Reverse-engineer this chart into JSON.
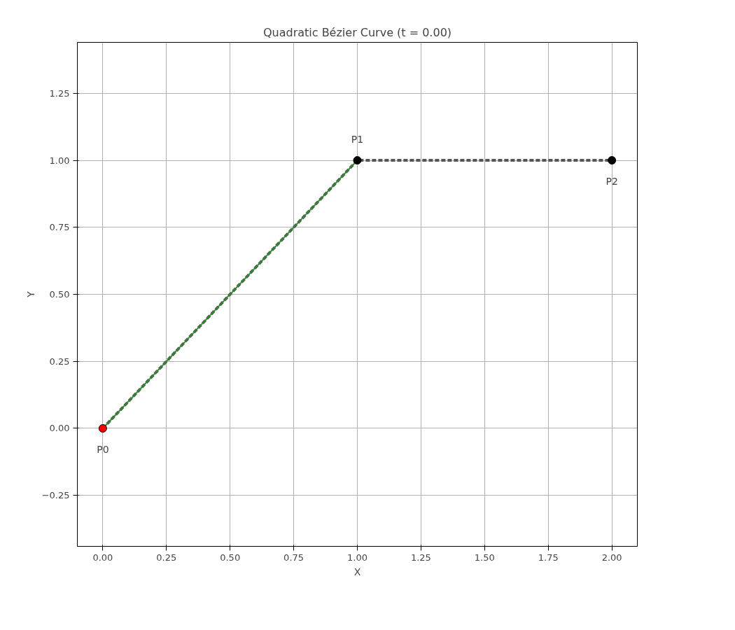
{
  "chart_data": {
    "type": "line",
    "title": "Quadratic Bézier Curve (t = 0.00)",
    "xlabel": "X",
    "ylabel": "Y",
    "xlim": [
      -0.1,
      2.1
    ],
    "ylim": [
      -0.44,
      1.44
    ],
    "xticks": [
      {
        "value": 0,
        "label": "0.00"
      },
      {
        "value": 0.25,
        "label": "0.25"
      },
      {
        "value": 0.5,
        "label": "0.50"
      },
      {
        "value": 0.75,
        "label": "0.75"
      },
      {
        "value": 1,
        "label": "1.00"
      },
      {
        "value": 1.25,
        "label": "1.25"
      },
      {
        "value": 1.5,
        "label": "1.50"
      },
      {
        "value": 1.75,
        "label": "1.75"
      },
      {
        "value": 2,
        "label": "2.00"
      }
    ],
    "yticks": [
      {
        "value": -0.25,
        "label": "−0.25"
      },
      {
        "value": 0,
        "label": "0.00"
      },
      {
        "value": 0.25,
        "label": "0.25"
      },
      {
        "value": 0.5,
        "label": "0.50"
      },
      {
        "value": 0.75,
        "label": "0.75"
      },
      {
        "value": 1,
        "label": "1.00"
      },
      {
        "value": 1.25,
        "label": "1.25"
      }
    ],
    "grid": true,
    "series": [
      {
        "x": [
          0,
          1,
          2
        ],
        "values": [
          0,
          1,
          1
        ],
        "color": "#555555",
        "line_style": "dashed",
        "marker": "none"
      },
      {
        "x": [
          0,
          1
        ],
        "values": [
          0,
          1
        ],
        "color": "#2e8b2e",
        "line_style": "solid",
        "marker": "none"
      },
      {
        "type": "scatter",
        "x": [
          0,
          1,
          2
        ],
        "values": [
          0,
          1,
          1
        ],
        "colors": [
          "#ff0000",
          "#000000",
          "#000000"
        ],
        "marker": "circle"
      }
    ],
    "annotations": [
      {
        "text": "P0",
        "x": 0,
        "y": 0
      },
      {
        "text": "P1",
        "x": 1,
        "y": 1
      },
      {
        "text": "P2",
        "x": 2,
        "y": 1
      }
    ]
  }
}
